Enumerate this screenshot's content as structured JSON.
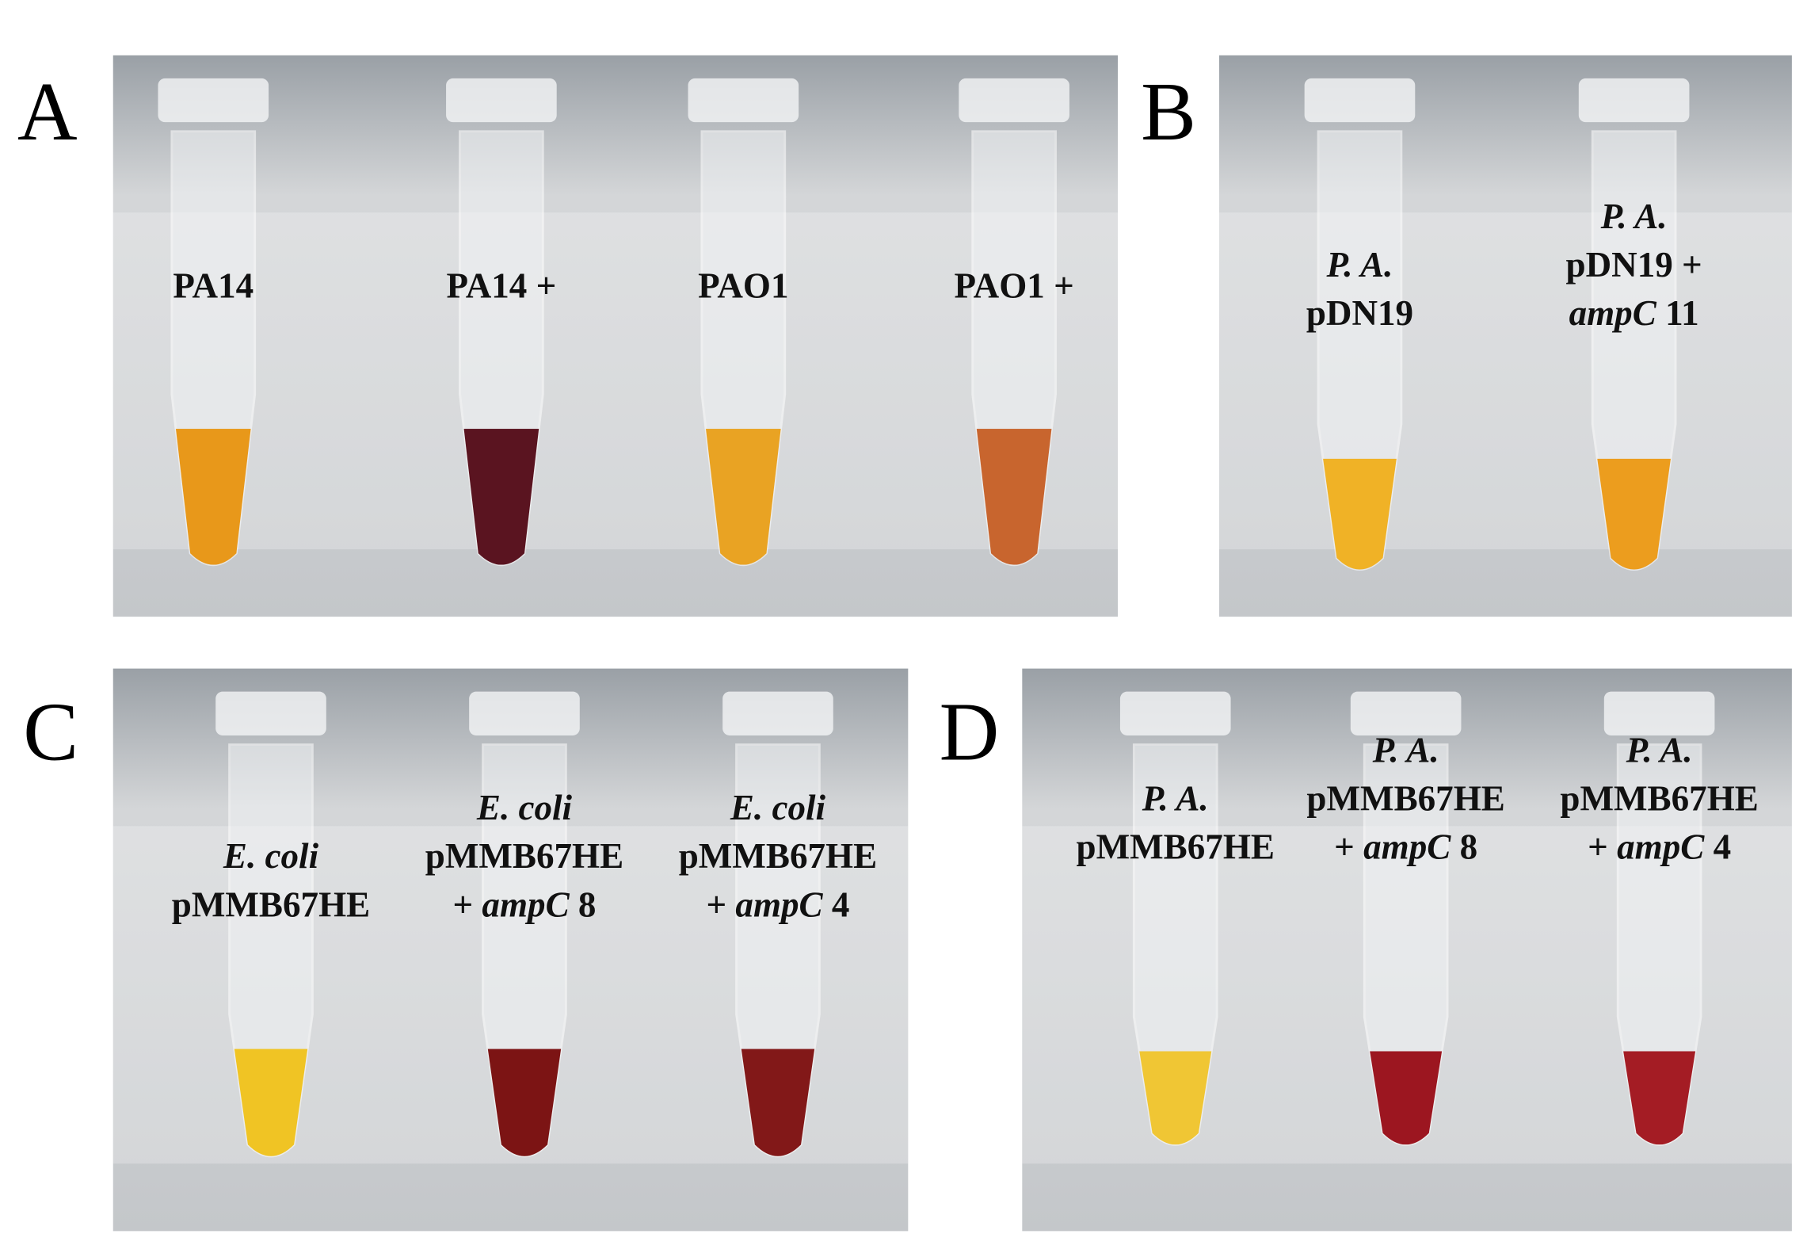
{
  "panels": [
    {
      "label": "A",
      "tubes": [
        {
          "lines": [
            [
              {
                "text": "PA14",
                "italic": false
              }
            ]
          ]
        },
        {
          "lines": [
            [
              {
                "text": "PA14 +",
                "italic": false
              }
            ]
          ]
        },
        {
          "lines": [
            [
              {
                "text": "PAO1",
                "italic": false
              }
            ]
          ]
        },
        {
          "lines": [
            [
              {
                "text": "PAO1 +",
                "italic": false
              }
            ]
          ]
        }
      ]
    },
    {
      "label": "B",
      "tubes": [
        {
          "lines": [
            [
              {
                "text": "P. A.",
                "italic": true
              }
            ],
            [
              {
                "text": "pDN19",
                "italic": false
              }
            ]
          ]
        },
        {
          "lines": [
            [
              {
                "text": "P. A.",
                "italic": true
              }
            ],
            [
              {
                "text": "pDN19 +",
                "italic": false
              }
            ],
            [
              {
                "text": "ampC",
                "italic": true
              },
              {
                "text": " 11",
                "italic": false
              }
            ]
          ]
        }
      ]
    },
    {
      "label": "C",
      "tubes": [
        {
          "lines": [
            [
              {
                "text": "E. coli",
                "italic": true
              }
            ],
            [
              {
                "text": "pMMB67HE",
                "italic": false
              }
            ]
          ]
        },
        {
          "lines": [
            [
              {
                "text": "E. coli",
                "italic": true
              }
            ],
            [
              {
                "text": "pMMB67HE",
                "italic": false
              }
            ],
            [
              {
                "text": "+ ",
                "italic": false
              },
              {
                "text": "ampC",
                "italic": true
              },
              {
                "text": " 8",
                "italic": false
              }
            ]
          ]
        },
        {
          "lines": [
            [
              {
                "text": "E. coli",
                "italic": true
              }
            ],
            [
              {
                "text": "pMMB67HE",
                "italic": false
              }
            ],
            [
              {
                "text": "+ ",
                "italic": false
              },
              {
                "text": "ampC",
                "italic": true
              },
              {
                "text": " 4",
                "italic": false
              }
            ]
          ]
        }
      ]
    },
    {
      "label": "D",
      "tubes": [
        {
          "lines": [
            [
              {
                "text": "P. A.",
                "italic": true
              }
            ],
            [
              {
                "text": "pMMB67HE",
                "italic": false
              }
            ]
          ]
        },
        {
          "lines": [
            [
              {
                "text": "P. A.",
                "italic": true
              }
            ],
            [
              {
                "text": "pMMB67HE",
                "italic": false
              }
            ],
            [
              {
                "text": "+ ",
                "italic": false
              },
              {
                "text": "ampC",
                "italic": true
              },
              {
                "text": " 8",
                "italic": false
              }
            ]
          ]
        },
        {
          "lines": [
            [
              {
                "text": "P. A.",
                "italic": true
              }
            ],
            [
              {
                "text": "pMMB67HE",
                "italic": false
              }
            ],
            [
              {
                "text": "+ ",
                "italic": false
              },
              {
                "text": "ampC",
                "italic": true
              },
              {
                "text": " 4",
                "italic": false
              }
            ]
          ]
        }
      ]
    }
  ]
}
